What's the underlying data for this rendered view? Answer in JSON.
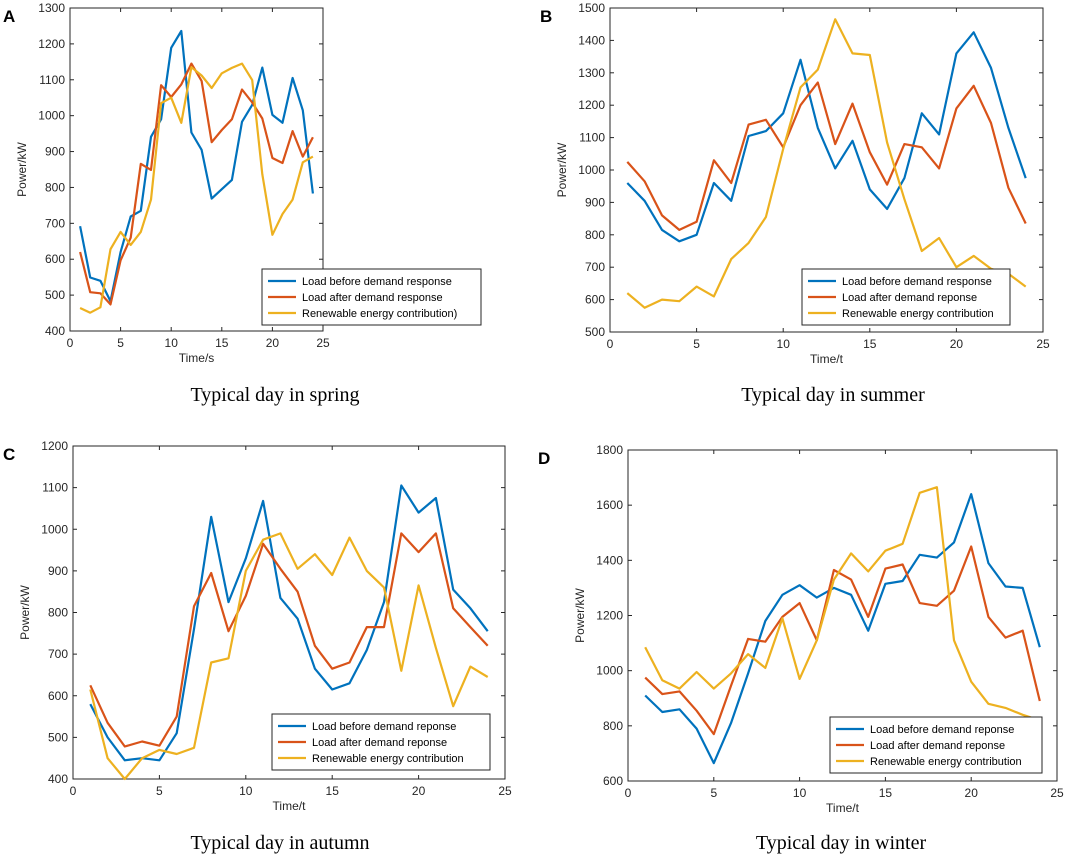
{
  "colors": {
    "blue": "#0072BD",
    "orange": "#D95319",
    "yellow": "#EDB120",
    "axis": "#262626"
  },
  "chart_data": [
    {
      "type": "line",
      "panel_label": "A",
      "caption": "Typical day in spring",
      "xlabel": "Time/s",
      "ylabel": "Power/kW",
      "xlim": [
        0,
        25
      ],
      "ylim": [
        400,
        1300
      ],
      "xticks": [
        0,
        5,
        10,
        15,
        20,
        25
      ],
      "yticks": [
        400,
        500,
        600,
        700,
        800,
        900,
        1000,
        1100,
        1200,
        1300
      ],
      "legend_position": "bottom-right",
      "x": [
        1,
        2,
        3,
        4,
        5,
        6,
        7,
        8,
        9,
        10,
        11,
        12,
        13,
        14,
        15,
        16,
        17,
        18,
        19,
        20,
        21,
        22,
        23,
        24
      ],
      "series": [
        {
          "name": "Load before demand response",
          "color": "blue",
          "values": [
            692,
            549,
            540,
            483,
            620,
            719,
            735,
            941,
            990,
            1189,
            1236,
            953,
            905,
            769,
            795,
            821,
            983,
            1030,
            1134,
            1002,
            980,
            1105,
            1015,
            783
          ]
        },
        {
          "name": "Load after demand response",
          "color": "orange",
          "values": [
            620,
            508,
            505,
            474,
            597,
            660,
            866,
            849,
            1085,
            1052,
            1087,
            1145,
            1097,
            926,
            960,
            990,
            1073,
            1037,
            992,
            882,
            868,
            957,
            886,
            940
          ]
        },
        {
          "name": "Renewable energy contribution)",
          "color": "yellow",
          "values": [
            464,
            451,
            466,
            628,
            676,
            640,
            676,
            766,
            1035,
            1050,
            980,
            1135,
            1112,
            1077,
            1118,
            1133,
            1145,
            1099,
            837,
            668,
            726,
            766,
            870,
            886
          ]
        }
      ]
    },
    {
      "type": "line",
      "panel_label": "B",
      "caption": "Typical day in summer",
      "xlabel": "Time/t",
      "ylabel": "Power/kW",
      "xlim": [
        0,
        25
      ],
      "ylim": [
        500,
        1500
      ],
      "xticks": [
        0,
        5,
        10,
        15,
        20,
        25
      ],
      "yticks": [
        500,
        600,
        700,
        800,
        900,
        1000,
        1100,
        1200,
        1300,
        1400,
        1500
      ],
      "legend_position": "bottom-right",
      "x": [
        1,
        2,
        3,
        4,
        5,
        6,
        7,
        8,
        9,
        10,
        11,
        12,
        13,
        14,
        15,
        16,
        17,
        18,
        19,
        20,
        21,
        22,
        23,
        24
      ],
      "series": [
        {
          "name": "Load before demand response",
          "color": "blue",
          "values": [
            960,
            905,
            815,
            780,
            800,
            960,
            905,
            1105,
            1120,
            1175,
            1340,
            1130,
            1005,
            1090,
            940,
            880,
            975,
            1175,
            1110,
            1360,
            1425,
            1315,
            1130,
            975
          ]
        },
        {
          "name": "Load after demand reponse",
          "color": "orange",
          "values": [
            1025,
            965,
            860,
            815,
            840,
            1030,
            960,
            1140,
            1155,
            1070,
            1200,
            1270,
            1080,
            1205,
            1055,
            955,
            1080,
            1070,
            1005,
            1190,
            1260,
            1145,
            945,
            835
          ]
        },
        {
          "name": "Renewable energy contribution",
          "color": "yellow",
          "values": [
            620,
            575,
            600,
            595,
            640,
            610,
            725,
            775,
            855,
            1065,
            1255,
            1310,
            1465,
            1360,
            1355,
            1085,
            910,
            750,
            790,
            700,
            735,
            695,
            680,
            640
          ]
        }
      ]
    },
    {
      "type": "line",
      "panel_label": "C",
      "caption": "Typical day in autumn",
      "xlabel": "Time/t",
      "ylabel": "Power/kW",
      "xlim": [
        0,
        25
      ],
      "ylim": [
        400,
        1200
      ],
      "xticks": [
        0,
        5,
        10,
        15,
        20,
        25
      ],
      "yticks": [
        400,
        500,
        600,
        700,
        800,
        900,
        1000,
        1100,
        1200
      ],
      "legend_position": "bottom-right",
      "x": [
        1,
        2,
        3,
        4,
        5,
        6,
        7,
        8,
        9,
        10,
        11,
        12,
        13,
        14,
        15,
        16,
        17,
        18,
        19,
        20,
        21,
        22,
        23,
        24
      ],
      "series": [
        {
          "name": "Load before demand reponse",
          "color": "blue",
          "values": [
            580,
            500,
            445,
            450,
            445,
            510,
            760,
            1030,
            825,
            930,
            1068,
            835,
            785,
            665,
            615,
            630,
            710,
            825,
            1105,
            1040,
            1075,
            855,
            810,
            755
          ]
        },
        {
          "name": "Load after demand reponse",
          "color": "orange",
          "values": [
            625,
            535,
            478,
            490,
            480,
            550,
            815,
            895,
            755,
            840,
            965,
            905,
            850,
            720,
            665,
            680,
            765,
            765,
            990,
            945,
            990,
            810,
            765,
            720
          ]
        },
        {
          "name": "Renewable energy contribution",
          "color": "yellow",
          "values": [
            615,
            450,
            400,
            450,
            470,
            460,
            475,
            680,
            690,
            900,
            975,
            990,
            905,
            940,
            890,
            980,
            900,
            860,
            660,
            865,
            715,
            575,
            670,
            645
          ]
        }
      ]
    },
    {
      "type": "line",
      "panel_label": "D",
      "caption": "Typical day in winter",
      "xlabel": "Time/t",
      "ylabel": "Power/kW",
      "xlim": [
        0,
        25
      ],
      "ylim": [
        600,
        1800
      ],
      "xticks": [
        0,
        5,
        10,
        15,
        20,
        25
      ],
      "yticks": [
        600,
        800,
        1000,
        1200,
        1400,
        1600,
        1800
      ],
      "legend_position": "bottom-right",
      "x": [
        1,
        2,
        3,
        4,
        5,
        6,
        7,
        8,
        9,
        10,
        11,
        12,
        13,
        14,
        15,
        16,
        17,
        18,
        19,
        20,
        21,
        22,
        23,
        24
      ],
      "series": [
        {
          "name": "Load before demand reponse",
          "color": "blue",
          "values": [
            910,
            850,
            860,
            790,
            665,
            810,
            990,
            1180,
            1275,
            1310,
            1265,
            1300,
            1275,
            1145,
            1315,
            1325,
            1420,
            1410,
            1465,
            1640,
            1390,
            1305,
            1300,
            1085
          ]
        },
        {
          "name": "Load after demand reponse",
          "color": "orange",
          "values": [
            975,
            915,
            925,
            855,
            770,
            945,
            1115,
            1105,
            1195,
            1245,
            1110,
            1365,
            1330,
            1195,
            1370,
            1385,
            1245,
            1235,
            1290,
            1450,
            1195,
            1120,
            1145,
            890
          ]
        },
        {
          "name": "Renewable energy contribution",
          "color": "yellow",
          "values": [
            1085,
            965,
            935,
            995,
            935,
            990,
            1060,
            1010,
            1190,
            970,
            1110,
            1330,
            1425,
            1360,
            1435,
            1460,
            1645,
            1665,
            1110,
            960,
            880,
            865,
            840,
            820
          ]
        }
      ]
    }
  ]
}
